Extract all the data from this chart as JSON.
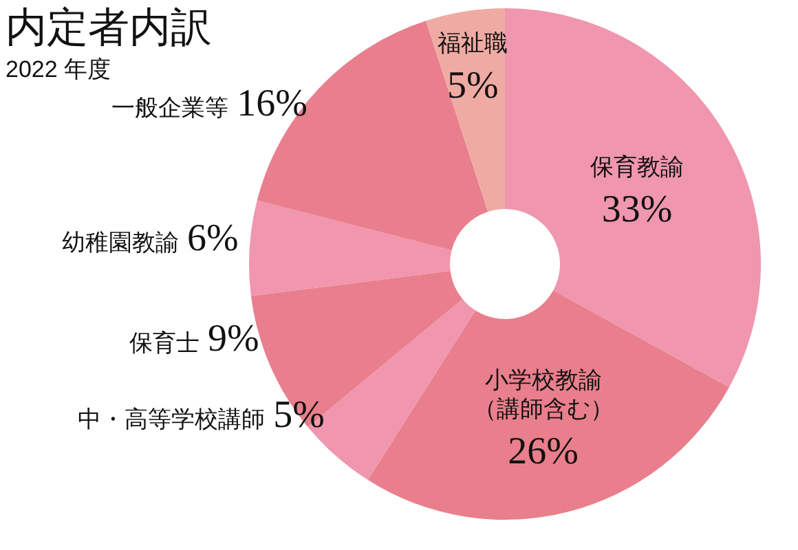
{
  "chart_data": {
    "type": "donut",
    "title": "内定者内訳",
    "subtitle": "2022 年度",
    "categories": [
      "保育教諭",
      "小学校教諭（講師含む）",
      "中・高等学校講師",
      "保育士",
      "幼稚園教諭",
      "一般企業等",
      "福祉職"
    ],
    "values": [
      33,
      26,
      5,
      9,
      6,
      16,
      5
    ],
    "value_labels": [
      "33%",
      "26%",
      "5%",
      "9%",
      "6%",
      "16%",
      "5%"
    ],
    "colors": [
      "#f096ae",
      "#e97f8c",
      "#f096ae",
      "#e97f8c",
      "#f096ae",
      "#e97f8c",
      "#efaba3"
    ]
  }
}
